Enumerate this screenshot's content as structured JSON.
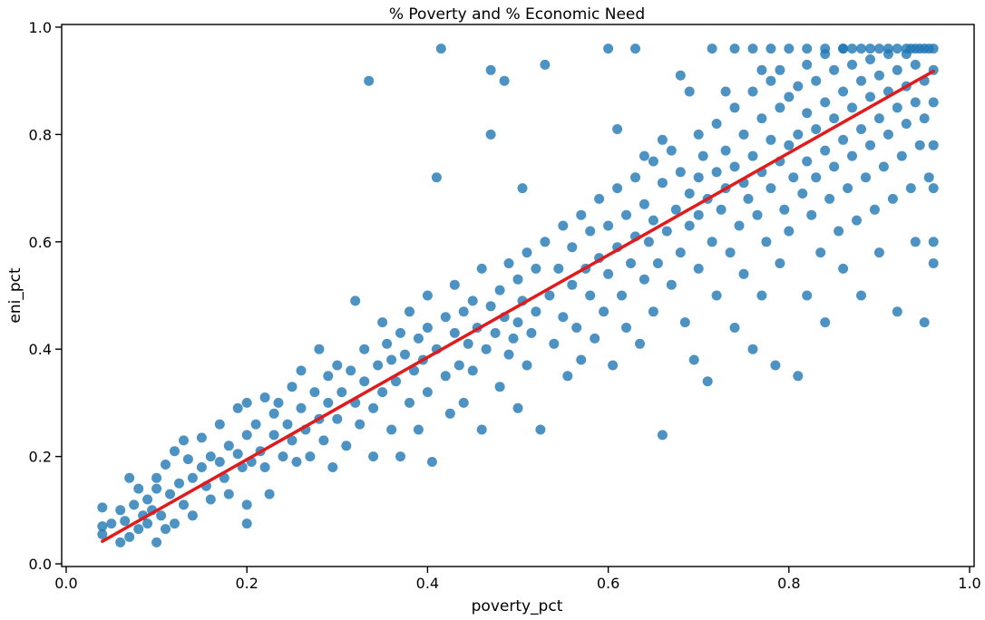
{
  "chart_data": {
    "type": "scatter",
    "title": "% Poverty and % Economic Need",
    "xlabel": "poverty_pct",
    "ylabel": "eni_pct",
    "xlim": [
      -0.005,
      1.005
    ],
    "ylim": [
      -0.005,
      1.005
    ],
    "xticks": [
      0.0,
      0.2,
      0.4,
      0.6,
      0.8,
      1.0
    ],
    "xtick_labels": [
      "0.0",
      "0.2",
      "0.4",
      "0.6",
      "0.8",
      "1.0"
    ],
    "yticks": [
      0.0,
      0.2,
      0.4,
      0.6,
      0.8,
      1.0
    ],
    "yticks_labels": [
      "0.0",
      "0.2",
      "0.4",
      "0.6",
      "0.8",
      "1.0"
    ],
    "grid": false,
    "point_color": "#1f77b4",
    "point_opacity": 0.8,
    "regression_color": "#e31a1c",
    "regression_line": {
      "x": [
        0.04,
        0.96
      ],
      "y": [
        0.042,
        0.918
      ]
    },
    "points": [
      [
        0.04,
        0.055
      ],
      [
        0.04,
        0.07
      ],
      [
        0.04,
        0.105
      ],
      [
        0.05,
        0.075
      ],
      [
        0.06,
        0.1
      ],
      [
        0.06,
        0.04
      ],
      [
        0.065,
        0.08
      ],
      [
        0.07,
        0.16
      ],
      [
        0.07,
        0.05
      ],
      [
        0.075,
        0.11
      ],
      [
        0.08,
        0.14
      ],
      [
        0.08,
        0.065
      ],
      [
        0.085,
        0.09
      ],
      [
        0.09,
        0.12
      ],
      [
        0.09,
        0.075
      ],
      [
        0.095,
        0.1
      ],
      [
        0.1,
        0.04
      ],
      [
        0.1,
        0.14
      ],
      [
        0.1,
        0.16
      ],
      [
        0.105,
        0.09
      ],
      [
        0.11,
        0.065
      ],
      [
        0.11,
        0.185
      ],
      [
        0.115,
        0.13
      ],
      [
        0.12,
        0.21
      ],
      [
        0.12,
        0.075
      ],
      [
        0.125,
        0.15
      ],
      [
        0.13,
        0.23
      ],
      [
        0.13,
        0.11
      ],
      [
        0.135,
        0.195
      ],
      [
        0.14,
        0.16
      ],
      [
        0.14,
        0.09
      ],
      [
        0.15,
        0.235
      ],
      [
        0.15,
        0.18
      ],
      [
        0.155,
        0.145
      ],
      [
        0.16,
        0.2
      ],
      [
        0.16,
        0.12
      ],
      [
        0.17,
        0.26
      ],
      [
        0.17,
        0.19
      ],
      [
        0.175,
        0.16
      ],
      [
        0.18,
        0.22
      ],
      [
        0.18,
        0.13
      ],
      [
        0.19,
        0.29
      ],
      [
        0.19,
        0.205
      ],
      [
        0.195,
        0.18
      ],
      [
        0.2,
        0.3
      ],
      [
        0.2,
        0.24
      ],
      [
        0.2,
        0.11
      ],
      [
        0.2,
        0.075
      ],
      [
        0.205,
        0.19
      ],
      [
        0.21,
        0.26
      ],
      [
        0.215,
        0.21
      ],
      [
        0.22,
        0.31
      ],
      [
        0.22,
        0.18
      ],
      [
        0.225,
        0.13
      ],
      [
        0.23,
        0.28
      ],
      [
        0.23,
        0.24
      ],
      [
        0.235,
        0.3
      ],
      [
        0.24,
        0.2
      ],
      [
        0.245,
        0.26
      ],
      [
        0.25,
        0.33
      ],
      [
        0.25,
        0.23
      ],
      [
        0.255,
        0.19
      ],
      [
        0.26,
        0.29
      ],
      [
        0.26,
        0.36
      ],
      [
        0.265,
        0.25
      ],
      [
        0.27,
        0.2
      ],
      [
        0.275,
        0.32
      ],
      [
        0.28,
        0.27
      ],
      [
        0.28,
        0.4
      ],
      [
        0.285,
        0.23
      ],
      [
        0.29,
        0.35
      ],
      [
        0.29,
        0.3
      ],
      [
        0.295,
        0.18
      ],
      [
        0.3,
        0.37
      ],
      [
        0.3,
        0.27
      ],
      [
        0.305,
        0.32
      ],
      [
        0.31,
        0.22
      ],
      [
        0.315,
        0.36
      ],
      [
        0.32,
        0.49
      ],
      [
        0.32,
        0.3
      ],
      [
        0.325,
        0.26
      ],
      [
        0.33,
        0.4
      ],
      [
        0.33,
        0.34
      ],
      [
        0.335,
        0.9
      ],
      [
        0.34,
        0.2
      ],
      [
        0.34,
        0.29
      ],
      [
        0.345,
        0.37
      ],
      [
        0.35,
        0.45
      ],
      [
        0.35,
        0.32
      ],
      [
        0.355,
        0.41
      ],
      [
        0.36,
        0.25
      ],
      [
        0.36,
        0.38
      ],
      [
        0.365,
        0.34
      ],
      [
        0.37,
        0.43
      ],
      [
        0.37,
        0.2
      ],
      [
        0.375,
        0.39
      ],
      [
        0.38,
        0.47
      ],
      [
        0.38,
        0.3
      ],
      [
        0.385,
        0.36
      ],
      [
        0.39,
        0.42
      ],
      [
        0.39,
        0.25
      ],
      [
        0.395,
        0.38
      ],
      [
        0.4,
        0.5
      ],
      [
        0.4,
        0.44
      ],
      [
        0.4,
        0.32
      ],
      [
        0.405,
        0.19
      ],
      [
        0.41,
        0.72
      ],
      [
        0.41,
        0.4
      ],
      [
        0.415,
        0.96
      ],
      [
        0.42,
        0.46
      ],
      [
        0.42,
        0.35
      ],
      [
        0.425,
        0.28
      ],
      [
        0.43,
        0.43
      ],
      [
        0.43,
        0.52
      ],
      [
        0.435,
        0.37
      ],
      [
        0.44,
        0.47
      ],
      [
        0.44,
        0.3
      ],
      [
        0.445,
        0.41
      ],
      [
        0.45,
        0.49
      ],
      [
        0.45,
        0.36
      ],
      [
        0.455,
        0.44
      ],
      [
        0.46,
        0.55
      ],
      [
        0.46,
        0.25
      ],
      [
        0.465,
        0.4
      ],
      [
        0.47,
        0.92
      ],
      [
        0.47,
        0.8
      ],
      [
        0.47,
        0.48
      ],
      [
        0.475,
        0.43
      ],
      [
        0.48,
        0.51
      ],
      [
        0.48,
        0.33
      ],
      [
        0.485,
        0.9
      ],
      [
        0.485,
        0.46
      ],
      [
        0.49,
        0.56
      ],
      [
        0.49,
        0.39
      ],
      [
        0.495,
        0.42
      ],
      [
        0.5,
        0.53
      ],
      [
        0.5,
        0.45
      ],
      [
        0.5,
        0.29
      ],
      [
        0.505,
        0.7
      ],
      [
        0.505,
        0.49
      ],
      [
        0.51,
        0.58
      ],
      [
        0.51,
        0.37
      ],
      [
        0.515,
        0.43
      ],
      [
        0.52,
        0.55
      ],
      [
        0.52,
        0.47
      ],
      [
        0.525,
        0.25
      ],
      [
        0.53,
        0.93
      ],
      [
        0.53,
        0.6
      ],
      [
        0.535,
        0.5
      ],
      [
        0.54,
        0.41
      ],
      [
        0.545,
        0.55
      ],
      [
        0.55,
        0.63
      ],
      [
        0.55,
        0.46
      ],
      [
        0.555,
        0.35
      ],
      [
        0.56,
        0.52
      ],
      [
        0.56,
        0.59
      ],
      [
        0.565,
        0.44
      ],
      [
        0.57,
        0.65
      ],
      [
        0.57,
        0.38
      ],
      [
        0.575,
        0.55
      ],
      [
        0.58,
        0.5
      ],
      [
        0.58,
        0.62
      ],
      [
        0.585,
        0.42
      ],
      [
        0.59,
        0.57
      ],
      [
        0.59,
        0.68
      ],
      [
        0.595,
        0.47
      ],
      [
        0.6,
        0.96
      ],
      [
        0.6,
        0.63
      ],
      [
        0.6,
        0.54
      ],
      [
        0.605,
        0.37
      ],
      [
        0.61,
        0.59
      ],
      [
        0.61,
        0.7
      ],
      [
        0.615,
        0.5
      ],
      [
        0.62,
        0.65
      ],
      [
        0.62,
        0.44
      ],
      [
        0.625,
        0.56
      ],
      [
        0.63,
        0.72
      ],
      [
        0.63,
        0.96
      ],
      [
        0.63,
        0.61
      ],
      [
        0.635,
        0.41
      ],
      [
        0.64,
        0.67
      ],
      [
        0.64,
        0.53
      ],
      [
        0.645,
        0.6
      ],
      [
        0.65,
        0.75
      ],
      [
        0.65,
        0.64
      ],
      [
        0.65,
        0.47
      ],
      [
        0.655,
        0.56
      ],
      [
        0.66,
        0.71
      ],
      [
        0.66,
        0.24
      ],
      [
        0.665,
        0.62
      ],
      [
        0.67,
        0.77
      ],
      [
        0.67,
        0.52
      ],
      [
        0.675,
        0.66
      ],
      [
        0.68,
        0.58
      ],
      [
        0.68,
        0.73
      ],
      [
        0.685,
        0.45
      ],
      [
        0.69,
        0.63
      ],
      [
        0.69,
        0.69
      ],
      [
        0.695,
        0.38
      ],
      [
        0.7,
        0.8
      ],
      [
        0.7,
        0.72
      ],
      [
        0.7,
        0.65
      ],
      [
        0.7,
        0.55
      ],
      [
        0.705,
        0.76
      ],
      [
        0.71,
        0.68
      ],
      [
        0.71,
        0.34
      ],
      [
        0.715,
        0.6
      ],
      [
        0.72,
        0.82
      ],
      [
        0.72,
        0.73
      ],
      [
        0.72,
        0.5
      ],
      [
        0.725,
        0.66
      ],
      [
        0.73,
        0.77
      ],
      [
        0.73,
        0.7
      ],
      [
        0.735,
        0.58
      ],
      [
        0.74,
        0.85
      ],
      [
        0.74,
        0.74
      ],
      [
        0.74,
        0.44
      ],
      [
        0.745,
        0.63
      ],
      [
        0.75,
        0.8
      ],
      [
        0.75,
        0.71
      ],
      [
        0.75,
        0.54
      ],
      [
        0.755,
        0.68
      ],
      [
        0.76,
        0.88
      ],
      [
        0.76,
        0.76
      ],
      [
        0.76,
        0.4
      ],
      [
        0.765,
        0.65
      ],
      [
        0.77,
        0.83
      ],
      [
        0.77,
        0.73
      ],
      [
        0.77,
        0.5
      ],
      [
        0.775,
        0.6
      ],
      [
        0.78,
        0.9
      ],
      [
        0.78,
        0.79
      ],
      [
        0.78,
        0.7
      ],
      [
        0.785,
        0.37
      ],
      [
        0.79,
        0.85
      ],
      [
        0.79,
        0.75
      ],
      [
        0.79,
        0.56
      ],
      [
        0.795,
        0.66
      ],
      [
        0.8,
        0.96
      ],
      [
        0.8,
        0.87
      ],
      [
        0.8,
        0.78
      ],
      [
        0.8,
        0.62
      ],
      [
        0.805,
        0.72
      ],
      [
        0.81,
        0.89
      ],
      [
        0.81,
        0.8
      ],
      [
        0.81,
        0.35
      ],
      [
        0.815,
        0.69
      ],
      [
        0.82,
        0.93
      ],
      [
        0.82,
        0.84
      ],
      [
        0.82,
        0.75
      ],
      [
        0.82,
        0.5
      ],
      [
        0.825,
        0.65
      ],
      [
        0.83,
        0.9
      ],
      [
        0.83,
        0.81
      ],
      [
        0.83,
        0.72
      ],
      [
        0.835,
        0.58
      ],
      [
        0.84,
        0.95
      ],
      [
        0.84,
        0.86
      ],
      [
        0.84,
        0.77
      ],
      [
        0.84,
        0.45
      ],
      [
        0.845,
        0.68
      ],
      [
        0.85,
        0.92
      ],
      [
        0.85,
        0.83
      ],
      [
        0.85,
        0.74
      ],
      [
        0.855,
        0.62
      ],
      [
        0.86,
        0.96
      ],
      [
        0.86,
        0.88
      ],
      [
        0.86,
        0.79
      ],
      [
        0.86,
        0.55
      ],
      [
        0.865,
        0.7
      ],
      [
        0.87,
        0.93
      ],
      [
        0.87,
        0.85
      ],
      [
        0.87,
        0.76
      ],
      [
        0.875,
        0.64
      ],
      [
        0.88,
        0.96
      ],
      [
        0.88,
        0.9
      ],
      [
        0.88,
        0.81
      ],
      [
        0.88,
        0.5
      ],
      [
        0.885,
        0.72
      ],
      [
        0.89,
        0.94
      ],
      [
        0.89,
        0.87
      ],
      [
        0.89,
        0.78
      ],
      [
        0.895,
        0.66
      ],
      [
        0.9,
        0.96
      ],
      [
        0.9,
        0.91
      ],
      [
        0.9,
        0.83
      ],
      [
        0.9,
        0.58
      ],
      [
        0.905,
        0.74
      ],
      [
        0.91,
        0.95
      ],
      [
        0.91,
        0.88
      ],
      [
        0.91,
        0.8
      ],
      [
        0.915,
        0.68
      ],
      [
        0.92,
        0.96
      ],
      [
        0.92,
        0.92
      ],
      [
        0.92,
        0.85
      ],
      [
        0.92,
        0.47
      ],
      [
        0.925,
        0.76
      ],
      [
        0.93,
        0.95
      ],
      [
        0.93,
        0.89
      ],
      [
        0.93,
        0.82
      ],
      [
        0.935,
        0.7
      ],
      [
        0.94,
        0.96
      ],
      [
        0.94,
        0.93
      ],
      [
        0.94,
        0.86
      ],
      [
        0.94,
        0.6
      ],
      [
        0.945,
        0.78
      ],
      [
        0.95,
        0.96
      ],
      [
        0.95,
        0.9
      ],
      [
        0.95,
        0.83
      ],
      [
        0.95,
        0.45
      ],
      [
        0.955,
        0.72
      ],
      [
        0.96,
        0.96
      ],
      [
        0.96,
        0.92
      ],
      [
        0.96,
        0.86
      ],
      [
        0.96,
        0.78
      ],
      [
        0.96,
        0.7
      ],
      [
        0.96,
        0.6
      ],
      [
        0.96,
        0.56
      ],
      [
        0.715,
        0.96
      ],
      [
        0.76,
        0.96
      ],
      [
        0.78,
        0.96
      ],
      [
        0.82,
        0.96
      ],
      [
        0.84,
        0.96
      ],
      [
        0.86,
        0.96
      ],
      [
        0.87,
        0.96
      ],
      [
        0.89,
        0.96
      ],
      [
        0.91,
        0.96
      ],
      [
        0.93,
        0.96
      ],
      [
        0.935,
        0.96
      ],
      [
        0.945,
        0.96
      ],
      [
        0.955,
        0.96
      ],
      [
        0.74,
        0.96
      ],
      [
        0.69,
        0.88
      ],
      [
        0.61,
        0.81
      ],
      [
        0.68,
        0.91
      ],
      [
        0.73,
        0.88
      ],
      [
        0.77,
        0.92
      ],
      [
        0.79,
        0.92
      ],
      [
        0.66,
        0.79
      ],
      [
        0.64,
        0.76
      ]
    ]
  }
}
